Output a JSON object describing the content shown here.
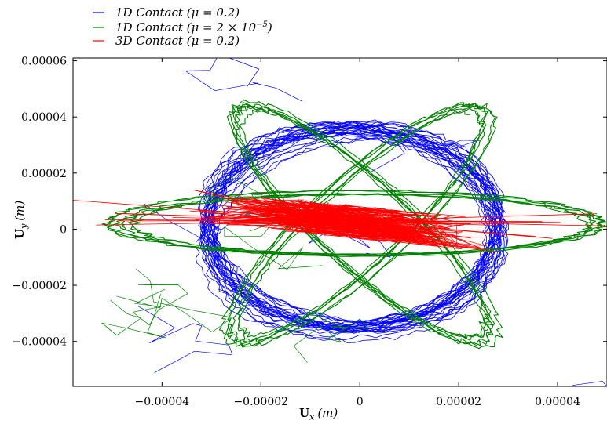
{
  "chart_data": {
    "type": "line",
    "title": "",
    "xlabel": "U_x (m)",
    "ylabel": "U_y (m)",
    "xlim": [
      -5.8e-05,
      5e-05
    ],
    "ylim": [
      -5.6e-05,
      6.1e-05
    ],
    "xticks": [
      -4e-05,
      -2e-05,
      0,
      2e-05,
      4e-05
    ],
    "xtick_labels": [
      "−0.00004",
      "−0.00002",
      "0",
      "0.00002",
      "0.00004"
    ],
    "yticks": [
      -4e-05,
      -2e-05,
      0,
      2e-05,
      4e-05,
      6e-05
    ],
    "ytick_labels": [
      "−0.00004",
      "−0.00002",
      "0",
      "0.00002",
      "0.00004",
      "0.00006"
    ],
    "grid": false,
    "legend_position": "top-left-outside",
    "series": [
      {
        "name": "1D Contact (μ = 0.2)",
        "color": "#0000ff",
        "pattern": "precessing-ellipse",
        "rx": 2.9e-05,
        "ry": 3.6e-05,
        "rotations_deg": [
          -20,
          -10,
          0,
          10,
          20
        ],
        "center": [
          -1.5e-06,
          0
        ]
      },
      {
        "name": "1D Contact (μ = 2 × 10⁻⁵)",
        "color": "#008000",
        "pattern": "precessing-ellipse",
        "rx": 4.8e-05,
        "ry": 1.1e-05,
        "rotations_deg": [
          0,
          60,
          120
        ],
        "center": [
          0,
          2e-06
        ]
      },
      {
        "name": "3D Contact (μ = 0.2)",
        "color": "#ff0000",
        "pattern": "cluster",
        "center": [
          -3e-06,
          3e-06
        ],
        "spread": [
          5e-05,
          1.2e-05
        ]
      }
    ],
    "legend_labels": {
      "s1_pre": "1D Contact (",
      "s1_post": " = 0.2)",
      "s2_pre": "1D Contact (",
      "s2_post": " = 2 × 10",
      "s2_exp": "−5",
      "s3_pre": "3D Contact (",
      "s3_post": " = 0.2)"
    },
    "mu_symbol": "μ",
    "x_symbol": "U",
    "x_sub": "x",
    "y_symbol": "U",
    "y_sub": "y",
    "unit": "(m)"
  }
}
